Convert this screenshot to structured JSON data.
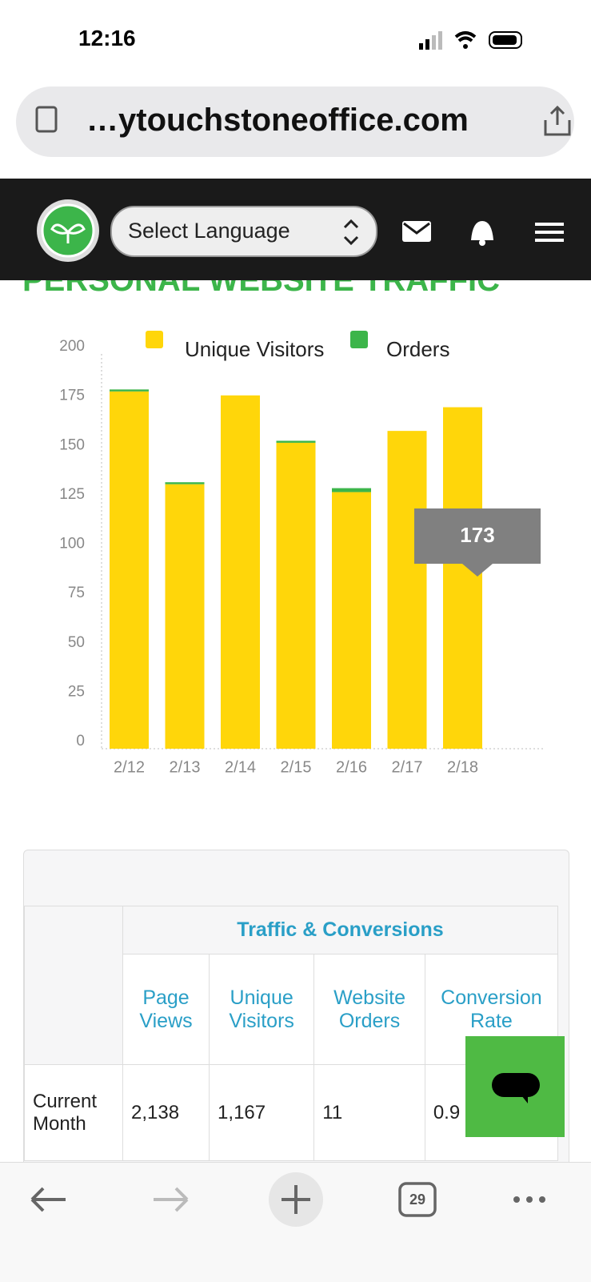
{
  "status_bar": {
    "time": "12:16"
  },
  "browser": {
    "url": "…ytouchstoneoffice.com",
    "tab_count": "29"
  },
  "nav": {
    "language_select": "Select Language"
  },
  "chart_data": {
    "type": "bar",
    "stacked": true,
    "title": "PERSONAL WEBSITE TRAFFIC",
    "categories": [
      "2/12",
      "2/13",
      "2/14",
      "2/15",
      "2/16",
      "2/17",
      "2/18"
    ],
    "series": [
      {
        "name": "Unique Visitors",
        "color": "#ffd60a",
        "values": [
          181,
          134,
          179,
          155,
          130,
          161,
          173
        ]
      },
      {
        "name": "Orders",
        "color": "#3cb54a",
        "values": [
          1,
          1,
          0,
          1,
          2,
          0,
          0
        ]
      }
    ],
    "ylim": [
      0,
      200
    ],
    "yticks": [
      0,
      25,
      50,
      75,
      100,
      125,
      150,
      175,
      200
    ],
    "grid": false,
    "legend": "top"
  },
  "table": {
    "group_header": "Traffic & Conversions",
    "columns": [
      "Page Views",
      "Unique Visitors",
      "Website Orders",
      "Conversion Rate"
    ],
    "rows": [
      [
        "Current Month",
        "2,138",
        "1,167",
        "11",
        "0.9"
      ]
    ]
  }
}
